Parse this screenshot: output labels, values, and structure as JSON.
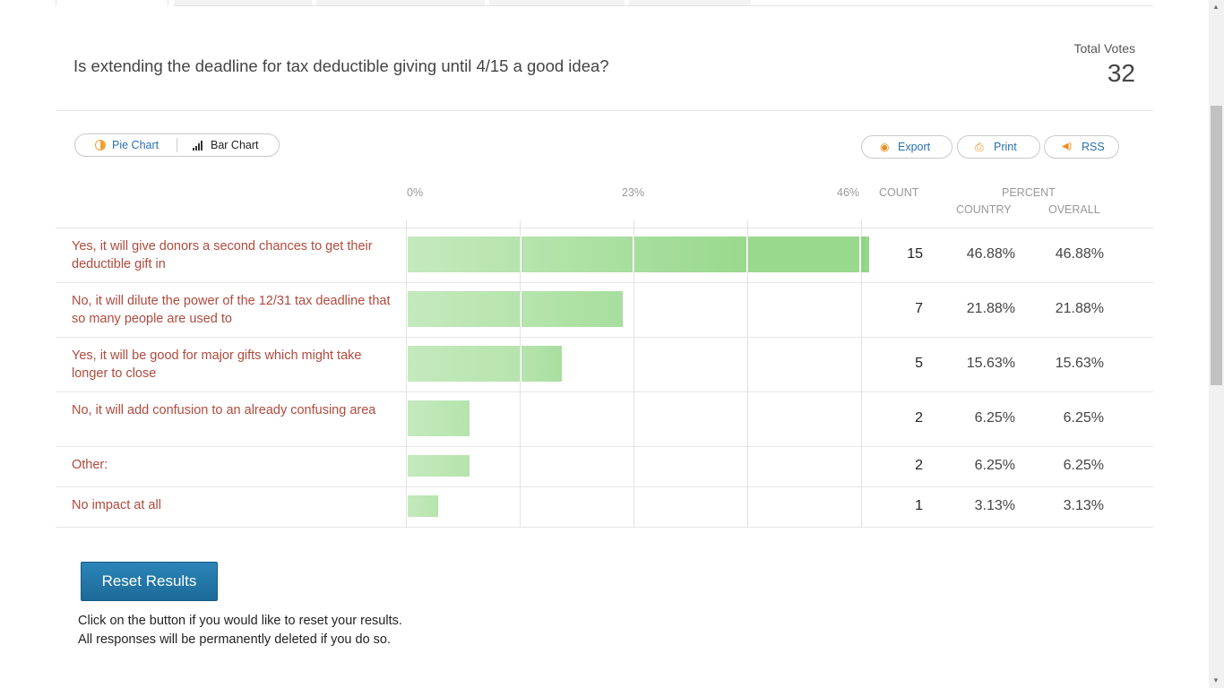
{
  "question": "Is extending the deadline for tax deductible giving until 4/15 a good idea?",
  "total_votes": {
    "label": "Total Votes",
    "value": "32"
  },
  "view_toggle": {
    "pie_label": "Pie Chart",
    "bar_label": "Bar Chart",
    "pie_icon": "half-circle-icon",
    "bar_icon": "bar-chart-icon"
  },
  "actions": {
    "export_label": "Export",
    "print_label": "Print",
    "rss_label": "RSS"
  },
  "table_header": {
    "scale": [
      "0%",
      "23%",
      "46%"
    ],
    "count": "COUNT",
    "percent": "PERCENT",
    "country": "COUNTRY",
    "overall": "OVERALL"
  },
  "colors": {
    "accent": "#b04a3c",
    "link": "#2a6fb0",
    "bar_light": "#c3e8bc",
    "bar_dark": "#99d98d",
    "button": "#1c6a99"
  },
  "chart_data": {
    "type": "bar",
    "categories": [
      "Yes, it will give donors a second chances to get their deductible gift in",
      "No, it will dilute the power of the 12/31 tax deadline that so many people are used to",
      "Yes, it will be good for major gifts which might take longer to close",
      "No, it will add confusion to an already confusing area",
      "Other:",
      "No impact at all"
    ],
    "series": [
      {
        "values": [
          15,
          7,
          5,
          2,
          2,
          1
        ]
      }
    ],
    "xlim": [
      0,
      46
    ],
    "xticks": [
      "0%",
      "23%",
      "46%"
    ]
  },
  "rows": [
    {
      "label": "Yes, it will give donors a second chances to get their deductible gift in",
      "count": "15",
      "country": "46.88%",
      "overall": "46.88%",
      "percent": 46.88
    },
    {
      "label": "No, it will dilute the power of the 12/31 tax deadline that so many people are used to",
      "count": "7",
      "country": "21.88%",
      "overall": "21.88%",
      "percent": 21.88
    },
    {
      "label": "Yes, it will be good for major gifts which might take longer to close",
      "count": "5",
      "country": "15.63%",
      "overall": "15.63%",
      "percent": 15.63
    },
    {
      "label": "No, it will add confusion to an already confusing area",
      "count": "2",
      "country": "6.25%",
      "overall": "6.25%",
      "percent": 6.25
    },
    {
      "label": "Other:",
      "count": "2",
      "country": "6.25%",
      "overall": "6.25%",
      "percent": 6.25
    },
    {
      "label": "No impact at all",
      "count": "1",
      "country": "3.13%",
      "overall": "3.13%",
      "percent": 3.13
    }
  ],
  "reset": {
    "button_label": "Reset Results",
    "note_line1": "Click on the button if you would like to reset your results.",
    "note_line2": "All responses will be permanently deleted if you do so."
  }
}
